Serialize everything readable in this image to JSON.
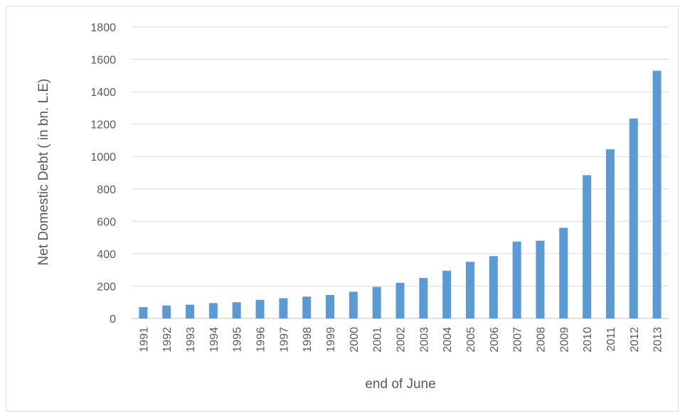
{
  "chart_data": {
    "type": "bar",
    "title": "",
    "xlabel": "end of June",
    "ylabel": "Net Domestic Debt ( in bn. L.E)",
    "ylim": [
      0,
      1800
    ],
    "yticks": [
      0,
      200,
      400,
      600,
      800,
      1000,
      1200,
      1400,
      1600,
      1800
    ],
    "grid": true,
    "legend": "none",
    "bar_color": "#5b9bd5",
    "categories": [
      "1991",
      "1992",
      "1993",
      "1994",
      "1995",
      "1996",
      "1997",
      "1998",
      "1999",
      "2000",
      "2001",
      "2002",
      "2003",
      "2004",
      "2005",
      "2006",
      "2007",
      "2008",
      "2009",
      "2010",
      "2011",
      "2012",
      "2013"
    ],
    "values": [
      70,
      80,
      85,
      95,
      100,
      115,
      125,
      135,
      145,
      165,
      195,
      220,
      250,
      295,
      350,
      385,
      475,
      480,
      560,
      885,
      1045,
      1235,
      1530
    ]
  }
}
